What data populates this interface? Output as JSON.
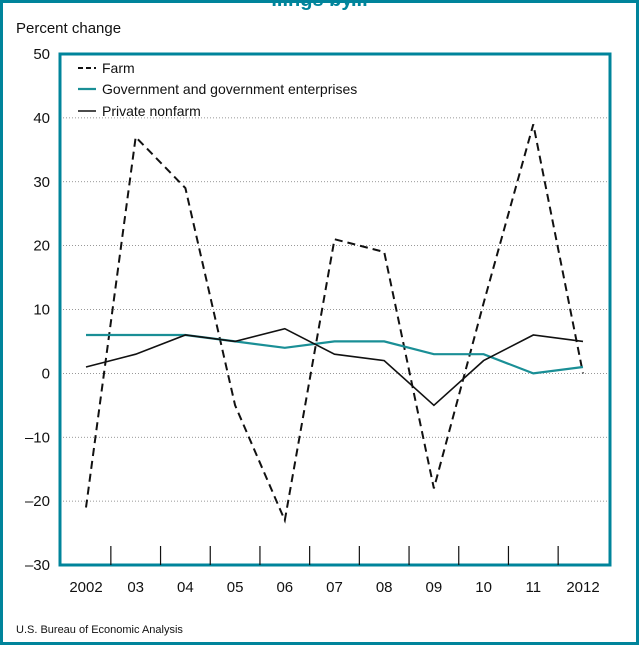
{
  "title": "...ngs by...",
  "unit_label": "Percent change",
  "source": "U.S. Bureau of Economic Analysis",
  "colors": {
    "accent": "#00849b",
    "farm": "#111111",
    "government": "#1a8f96",
    "private": "#111111"
  },
  "chart_data": {
    "type": "line",
    "x_tick_labels": [
      "2002",
      "03",
      "04",
      "05",
      "06",
      "07",
      "08",
      "09",
      "10",
      "11",
      "2012"
    ],
    "ylim": [
      -30,
      50
    ],
    "yticks": [
      -30,
      -20,
      -10,
      0,
      10,
      20,
      30,
      40,
      50
    ],
    "ytick_labels": [
      "–30",
      "–20",
      "–10",
      "0",
      "10",
      "20",
      "30",
      "40",
      "50"
    ],
    "ylabel": "Percent change",
    "grid": "horizontal dotted",
    "legend_position": "top-left",
    "series": [
      {
        "name": "Farm",
        "style": "dashed",
        "color": "#111111",
        "values": [
          -21,
          37,
          29,
          -5,
          -23,
          21,
          19,
          -18,
          11,
          39,
          0
        ]
      },
      {
        "name": "Government and government enterprises",
        "style": "solid",
        "color": "#1a8f96",
        "values": [
          6,
          6,
          6,
          5,
          4,
          5,
          5,
          3,
          3,
          0,
          1
        ]
      },
      {
        "name": "Private nonfarm",
        "style": "solid",
        "color": "#111111",
        "values": [
          1,
          3,
          6,
          5,
          7,
          3,
          2,
          -5,
          2,
          6,
          5
        ]
      }
    ]
  }
}
